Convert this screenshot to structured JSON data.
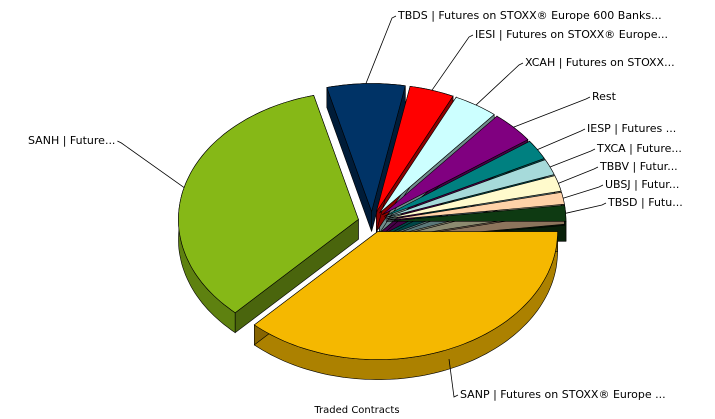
{
  "chart_data": {
    "type": "pie",
    "title": "Traded Contracts",
    "categories": [
      "TBSD | Futu...",
      "UBSJ | Futur...",
      "TBBV | Futur...",
      "TXCA | Future...",
      "IESP | Futures ...",
      "Rest",
      "XCAH | Futures on STOXX...",
      "IESI | Futures on STOXX® Europe...",
      "TBDS | Futures on STOXX® Europe 600 Banks...",
      "SANH | Future...",
      "SANP | Futures on STOXX® Europe ..."
    ],
    "values": [
      2,
      1.5,
      2,
      2,
      2.5,
      4,
      4,
      4,
      7,
      34,
      37
    ],
    "colors": [
      "#0e3a12",
      "#ffd2a8",
      "#fffacc",
      "#a6dada",
      "#008080",
      "#800080",
      "#ccffff",
      "#ff0000",
      "#003366",
      "#86b817",
      "#f5b800"
    ]
  }
}
